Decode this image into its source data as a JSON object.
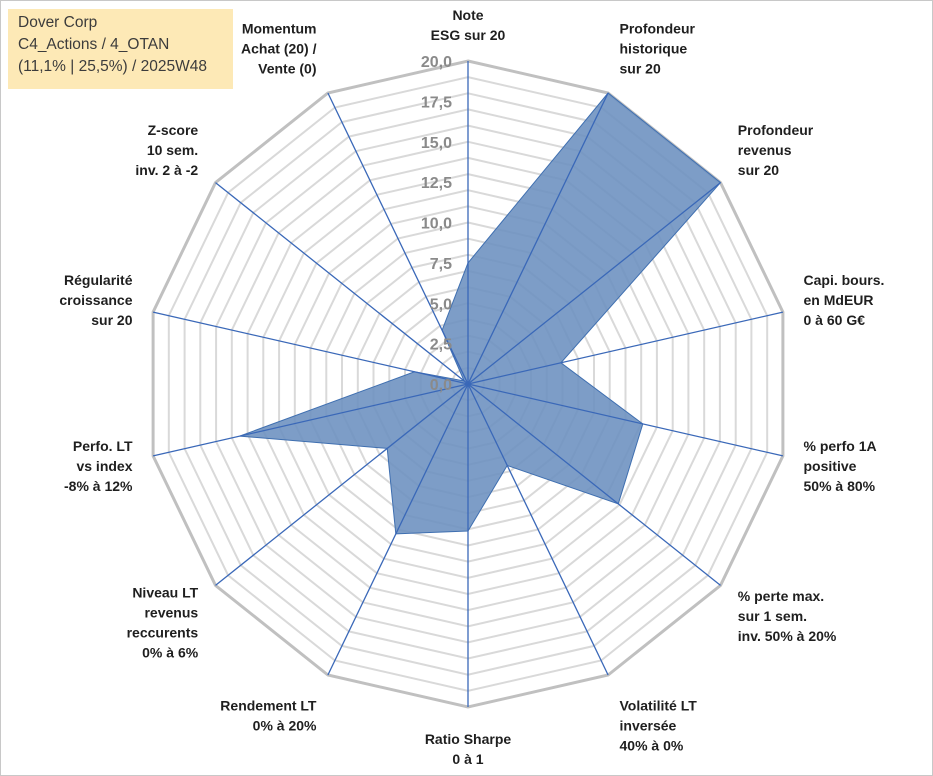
{
  "title_box": {
    "line1": "Dover Corp",
    "line2": "C4_Actions / 4_OTAN",
    "line3": "(11,1% | 25,5%) / 2025W48"
  },
  "colors": {
    "fill": "#6b90bf",
    "stroke": "#3f6fb0",
    "spoke": "#3a68b8",
    "ring_major": "#c0c0c0",
    "ring_minor": "#d9d9d9"
  },
  "chart_data": {
    "type": "radar",
    "ylim": [
      0,
      20
    ],
    "tick_labels": [
      "0,0",
      "2,5",
      "5,0",
      "7,5",
      "10,0",
      "12,5",
      "15,0",
      "17,5",
      "20,0"
    ],
    "categories": [
      [
        "Note",
        "ESG sur 20"
      ],
      [
        "Profondeur",
        "historique",
        "sur 20"
      ],
      [
        "Profondeur",
        "revenus",
        "sur 20"
      ],
      [
        "Capi. bours.",
        "en MdEUR",
        "0 à 60 G€"
      ],
      [
        "% perfo 1A",
        "positive",
        "50% à 80%"
      ],
      [
        "% perte max.",
        "sur 1 sem.",
        "inv. 50% à 20%"
      ],
      [
        "Volatilité LT",
        "inversée",
        "40% à 0%"
      ],
      [
        "Ratio Sharpe",
        "0 à 1"
      ],
      [
        "Rendement LT",
        "0% à 20%"
      ],
      [
        "Niveau LT",
        "revenus",
        "reccurents",
        "0% à 6%"
      ],
      [
        "Perfo. LT",
        "vs index",
        "-8% à 12%"
      ],
      [
        "Régularité",
        "croissance",
        "sur 20"
      ],
      [
        "Z-score",
        "10 sem.",
        "inv. 2 à -2"
      ],
      [
        "Momentum",
        "Achat (20) /",
        "Vente (0)"
      ]
    ],
    "values": [
      7.5,
      20.0,
      20.0,
      5.9,
      11.1,
      11.9,
      5.6,
      9.1,
      10.3,
      6.4,
      14.5,
      3.4,
      0.3,
      3.7
    ],
    "grid": true
  }
}
